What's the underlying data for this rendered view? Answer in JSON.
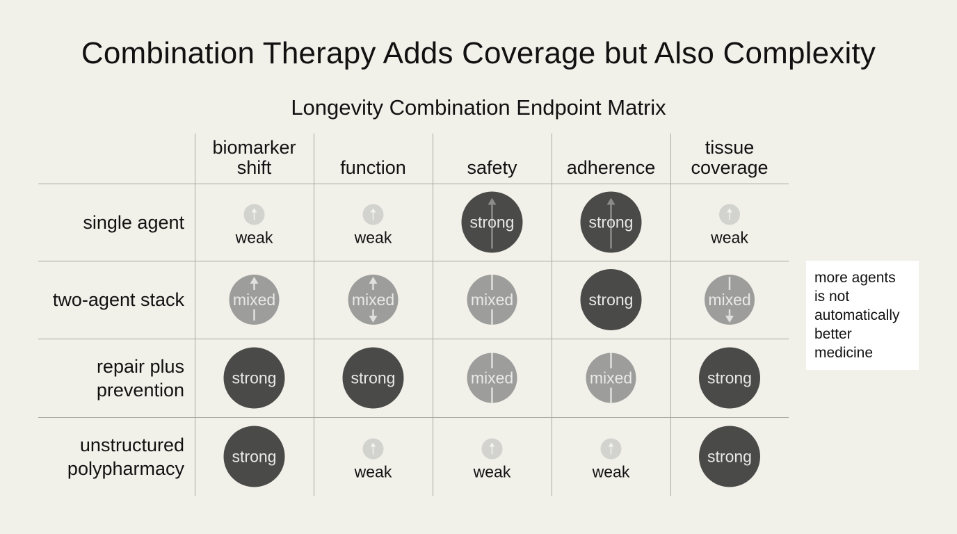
{
  "title": "Combination Therapy Adds Coverage but Also Complexity",
  "matrix_title": "Longevity Combination Endpoint Matrix",
  "columns": [
    {
      "id": "biomarker",
      "label": "biomarker\nshift"
    },
    {
      "id": "function",
      "label": "function"
    },
    {
      "id": "safety",
      "label": "safety"
    },
    {
      "id": "adherence",
      "label": "adherence"
    },
    {
      "id": "tissue",
      "label": "tissue\ncoverage"
    }
  ],
  "rows": [
    {
      "label": "single agent",
      "cells": [
        {
          "level": "weak",
          "arrow": "up"
        },
        {
          "level": "weak",
          "arrow": "up"
        },
        {
          "level": "strong",
          "arrow": "up"
        },
        {
          "level": "strong",
          "arrow": "up"
        },
        {
          "level": "weak",
          "arrow": "up"
        }
      ]
    },
    {
      "label": "two-agent stack",
      "cells": [
        {
          "level": "mixed",
          "arrow": "up"
        },
        {
          "level": "mixed",
          "arrow": "updown"
        },
        {
          "level": "mixed",
          "arrow": "line"
        },
        {
          "level": "strong",
          "arrow": "none"
        },
        {
          "level": "mixed",
          "arrow": "down"
        }
      ]
    },
    {
      "label": "repair plus\nprevention",
      "cells": [
        {
          "level": "strong",
          "arrow": "none"
        },
        {
          "level": "strong",
          "arrow": "none"
        },
        {
          "level": "mixed",
          "arrow": "line"
        },
        {
          "level": "mixed",
          "arrow": "line"
        },
        {
          "level": "strong",
          "arrow": "none"
        }
      ]
    },
    {
      "label": "unstructured\npolypharmacy",
      "cells": [
        {
          "level": "strong",
          "arrow": "none"
        },
        {
          "level": "weak",
          "arrow": "up"
        },
        {
          "level": "weak",
          "arrow": "up"
        },
        {
          "level": "weak",
          "arrow": "up"
        },
        {
          "level": "strong",
          "arrow": "none"
        }
      ]
    }
  ],
  "levels": {
    "strong": {
      "label": "strong",
      "color": "#4a4a48"
    },
    "mixed": {
      "label": "mixed",
      "color": "#9d9d9b"
    },
    "weak": {
      "label": "weak",
      "color": "#d2d2cf"
    }
  },
  "note": "more agents\nis not\nautomatically\nbetter\nmedicine",
  "colors": {
    "background": "#f1f0e9",
    "grid": "#a9a9a5",
    "note_bg": "#ffffff"
  }
}
